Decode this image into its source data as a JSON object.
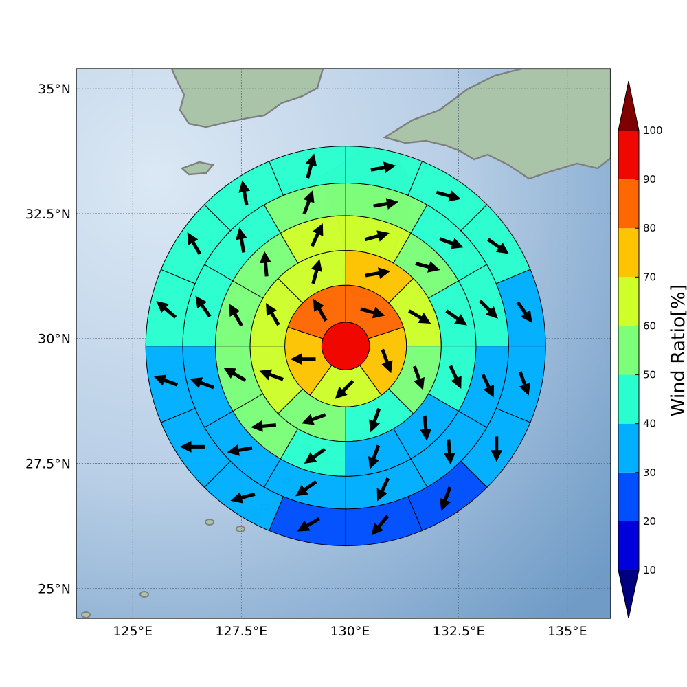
{
  "map": {
    "lon_range": [
      123.7,
      136.0
    ],
    "lat_range": [
      24.4,
      35.4
    ],
    "grid": true,
    "lon_ticks": [
      125,
      127.5,
      130,
      132.5,
      135
    ],
    "lat_ticks": [
      25,
      27.5,
      30,
      32.5,
      35
    ],
    "lon_labels": [
      "125°E",
      "127.5°E",
      "130°E",
      "132.5°E",
      "135°E"
    ],
    "lat_labels": [
      "25°N",
      "27.5°N",
      "30°N",
      "32.5°N",
      "35°N"
    ],
    "colors": {
      "sea_light": "#cfe0f0",
      "sea_dark": "#7aa4cc",
      "land": "#a9c4a8",
      "coastline": "#7f7f7f",
      "cell_edge": "#000000",
      "arrow": "#000000"
    }
  },
  "chart_data": {
    "type": "heatmap",
    "title": "",
    "center": {
      "lon": 129.9,
      "lat": 29.85
    },
    "rings_deg": [
      0.55,
      1.4,
      2.2,
      3.0,
      3.75,
      4.6
    ],
    "sectors_per_ring": [
      1,
      5,
      8,
      12,
      12,
      16
    ],
    "wind_ratio_percent": [
      [
        95
      ],
      [
        85,
        75,
        65,
        75,
        85
      ],
      [
        75,
        65,
        55,
        45,
        55,
        65,
        65,
        65
      ],
      [
        65,
        55,
        45,
        45,
        35,
        35,
        45,
        55,
        55,
        55,
        55,
        65
      ],
      [
        55,
        45,
        45,
        35,
        35,
        35,
        35,
        35,
        35,
        45,
        45,
        55
      ],
      [
        45,
        45,
        45,
        35,
        35,
        35,
        25,
        25,
        25,
        35,
        35,
        35,
        45,
        45,
        45,
        45
      ]
    ],
    "wind_direction_deg": [
      [
        null
      ],
      [
        105,
        160,
        225,
        270,
        330
      ],
      [
        80,
        120,
        160,
        200,
        250,
        290,
        330,
        15
      ],
      [
        75,
        105,
        125,
        155,
        175,
        200,
        235,
        265,
        300,
        330,
        355,
        25
      ],
      [
        80,
        110,
        135,
        155,
        175,
        205,
        235,
        260,
        290,
        325,
        350,
        20
      ],
      [
        80,
        105,
        125,
        145,
        160,
        180,
        200,
        220,
        240,
        255,
        270,
        290,
        310,
        330,
        350,
        15
      ]
    ],
    "colorbar": {
      "label": "Wind Ratio[%]",
      "ticks": [
        10,
        20,
        30,
        40,
        50,
        60,
        70,
        80,
        90,
        100
      ],
      "tick_labels": [
        "10",
        "20",
        "30",
        "40",
        "50",
        "60",
        "70",
        "80",
        "90",
        "100"
      ],
      "under_color": "#00007f",
      "over_color": "#7f0000",
      "bin_colors": [
        "#0000dd",
        "#0050ff",
        "#00b0ff",
        "#29ffce",
        "#7dff7a",
        "#ceff29",
        "#ffc400",
        "#ff6800",
        "#f00800"
      ],
      "extend": "both"
    }
  }
}
